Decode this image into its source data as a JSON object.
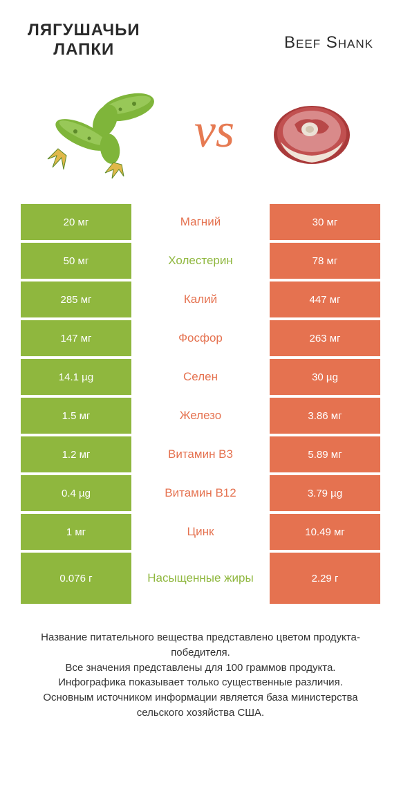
{
  "header": {
    "left_title_line1": "ЛЯГУШАЧЬИ",
    "left_title_line2": "ЛАПКИ",
    "right_title": "Beef Shank"
  },
  "vs": "vs",
  "colors": {
    "left": "#8fb73e",
    "right": "#e57250",
    "bg": "#ffffff",
    "text": "#333333"
  },
  "illustrations": {
    "left_name": "frog-legs",
    "right_name": "beef-shank",
    "frog_green": "#7fb53a",
    "frog_dark": "#5d8a2a",
    "frog_foot": "#e0b84a",
    "shank_red": "#a93a3a",
    "shank_pink": "#d98a8a",
    "shank_fat": "#f0e4d8",
    "shank_bone": "#ece2d6"
  },
  "rows": [
    {
      "left": "20 мг",
      "label": "Магний",
      "right": "30 мг",
      "winner": "right"
    },
    {
      "left": "50 мг",
      "label": "Холестерин",
      "right": "78 мг",
      "winner": "left"
    },
    {
      "left": "285 мг",
      "label": "Калий",
      "right": "447 мг",
      "winner": "right"
    },
    {
      "left": "147 мг",
      "label": "Фосфор",
      "right": "263 мг",
      "winner": "right"
    },
    {
      "left": "14.1 µg",
      "label": "Селен",
      "right": "30 µg",
      "winner": "right"
    },
    {
      "left": "1.5 мг",
      "label": "Железо",
      "right": "3.86 мг",
      "winner": "right"
    },
    {
      "left": "1.2 мг",
      "label": "Витамин B3",
      "right": "5.89 мг",
      "winner": "right"
    },
    {
      "left": "0.4 µg",
      "label": "Витамин B12",
      "right": "3.79 µg",
      "winner": "right"
    },
    {
      "left": "1 мг",
      "label": "Цинк",
      "right": "10.49 мг",
      "winner": "right"
    },
    {
      "left": "0.076 г",
      "label": "Насыщенные жиры",
      "right": "2.29 г",
      "winner": "left",
      "tall": true
    }
  ],
  "footer": {
    "line1": "Название питательного вещества представлено цветом продукта-победителя.",
    "line2": "Все значения представлены для 100 граммов продукта.",
    "line3": "Инфографика показывает только существенные различия.",
    "line4": "Основным источником информации является база министерства сельского хозяйства США."
  },
  "typography": {
    "title_left_fontsize": 24,
    "title_right_fontsize": 24,
    "vs_fontsize": 70,
    "cell_value_fontsize": 15,
    "cell_label_fontsize": 17,
    "footer_fontsize": 15
  }
}
